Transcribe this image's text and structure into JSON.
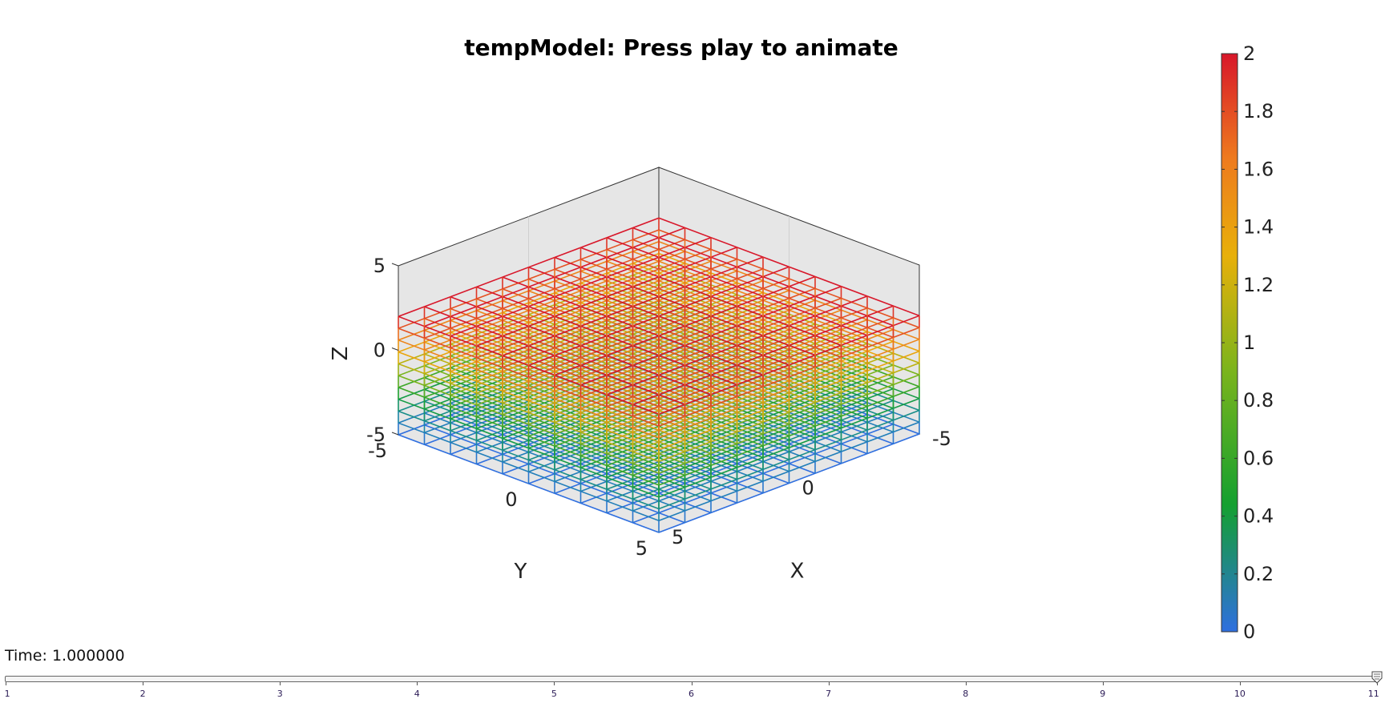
{
  "chart_data": {
    "type": "3d-wireframe",
    "title": "tempModel: Press play to animate",
    "xlabel": "X",
    "ylabel": "Y",
    "zlabel": "Z",
    "xlim": [
      -5,
      5
    ],
    "ylim": [
      -5,
      5
    ],
    "zlim": [
      -5,
      5
    ],
    "x_ticks": [
      "-5",
      "0",
      "5"
    ],
    "y_ticks": [
      "-5",
      "0",
      "5"
    ],
    "z_ticks": [
      "-5",
      "0",
      "5"
    ],
    "mesh_bounds": {
      "x": [
        -5,
        5
      ],
      "y": [
        -5,
        5
      ],
      "z": [
        -5,
        2
      ]
    },
    "grid_divisions": 10,
    "z_layers": 10,
    "color_value": "z + 5 scaled to colorbar range (0 at z=-5, 2 at z=2)",
    "colorbar": {
      "min": 0,
      "max": 2,
      "ticks": [
        "0",
        "0.2",
        "0.4",
        "0.6",
        "0.8",
        "1",
        "1.2",
        "1.4",
        "1.6",
        "1.8",
        "2"
      ],
      "colors": [
        "#2f6fe0",
        "#1a8aa0",
        "#14a030",
        "#7ab41c",
        "#e8b00a",
        "#ee7a1e",
        "#d8172a"
      ]
    },
    "pane_color": "#e6e6e6",
    "grid": true
  },
  "timebar": {
    "time_label": "Time: 1.000000",
    "slider_value": 11,
    "slider_min": 1,
    "slider_max": 11,
    "tick_labels": [
      "1",
      "2",
      "3",
      "4",
      "5",
      "6",
      "7",
      "8",
      "9",
      "10",
      "11"
    ]
  }
}
